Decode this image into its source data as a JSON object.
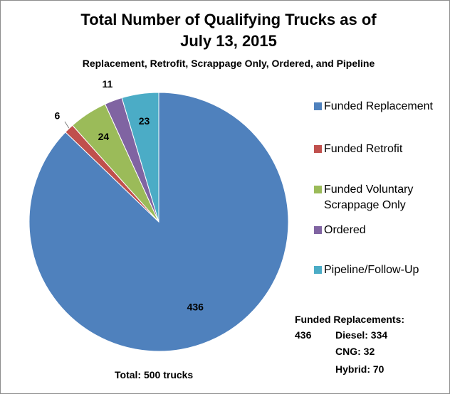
{
  "chart_data": {
    "type": "pie",
    "title": "Total Number of Qualifying Trucks as of July 13, 2015",
    "subtitle": "Replacement, Retrofit, Scrappage Only, Ordered, and Pipeline",
    "categories": [
      "Funded Replacement",
      "Funded Retrofit",
      "Funded Voluntary Scrappage Only",
      "Ordered",
      "Pipeline/Follow-Up"
    ],
    "values": [
      436,
      6,
      24,
      11,
      23
    ],
    "colors": [
      "#4f81bd",
      "#c0504d",
      "#9bbb59",
      "#8064a2",
      "#4bacc6"
    ],
    "legend": "right",
    "annotations": [
      "Total: 500 trucks",
      "Funded Replacements:",
      "436",
      "Diesel: 334",
      "CNG: 32",
      "Hybrid: 70"
    ]
  }
}
